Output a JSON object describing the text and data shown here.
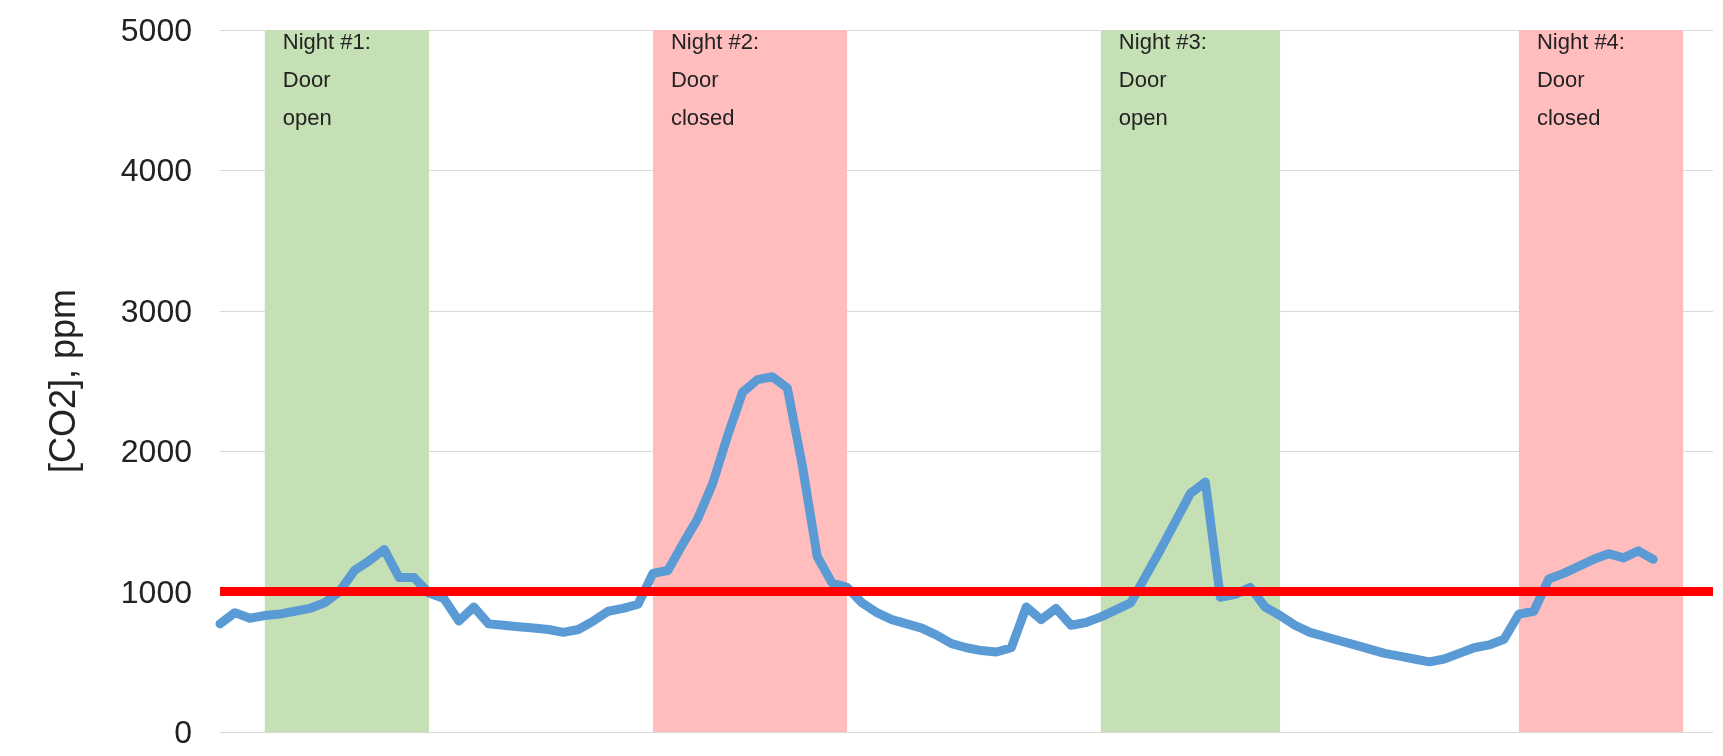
{
  "chart_data": {
    "type": "line",
    "ylabel": "[CO2], ppm",
    "categories": [
      null,
      null,
      null,
      null,
      null,
      null,
      null,
      null,
      null,
      null,
      null,
      null,
      null,
      null,
      null,
      null,
      null,
      null,
      null,
      null,
      null,
      null,
      null,
      null,
      null,
      null,
      null,
      null,
      null,
      null,
      null,
      null,
      null,
      null,
      null,
      null,
      null,
      null,
      null,
      null,
      null,
      null,
      null,
      null,
      null,
      null,
      null,
      null,
      null,
      null,
      null,
      null,
      null,
      null,
      null,
      null,
      null,
      null,
      null,
      null,
      null,
      null,
      null,
      null,
      null,
      null,
      null,
      null,
      null,
      null,
      null,
      null,
      null,
      null,
      null,
      null,
      null,
      null,
      null,
      null,
      null,
      null,
      null,
      null,
      null,
      null,
      null,
      null,
      null,
      null,
      null,
      null,
      null,
      null,
      null,
      null,
      null,
      null,
      null,
      null,
      null
    ],
    "ylim": [
      0,
      5000
    ],
    "yticks": [
      0,
      1000,
      2000,
      3000,
      4000,
      5000
    ],
    "tick_labels": "y",
    "grid": "y",
    "marker": "none",
    "line_style": "solid",
    "series": [
      {
        "color": "#5b9bd5",
        "values": [
          770,
          850,
          810,
          830,
          840,
          860,
          880,
          920,
          1000,
          1150,
          1220,
          1300,
          1100,
          1100,
          990,
          950,
          790,
          890,
          770,
          760,
          750,
          740,
          730,
          710,
          730,
          790,
          860,
          880,
          910,
          1130,
          1150,
          1340,
          1520,
          1770,
          2110,
          2420,
          2510,
          2530,
          2450,
          1900,
          1250,
          1060,
          1030,
          920,
          850,
          800,
          770,
          740,
          690,
          630,
          600,
          580,
          570,
          600,
          890,
          800,
          880,
          760,
          780,
          820,
          870,
          920,
          1110,
          1300,
          1500,
          1700,
          1780,
          960,
          980,
          1030,
          890,
          830,
          760,
          710,
          680,
          650,
          620,
          590,
          560,
          540,
          520,
          500,
          520,
          560,
          600,
          620,
          660,
          840,
          860,
          1090,
          1130,
          1180,
          1230,
          1270,
          1240,
          1290,
          1230,
          null,
          null,
          null,
          null
        ]
      }
    ],
    "ref_lines": [
      {
        "axis": "y",
        "value": 1000,
        "color": "#ff0000"
      }
    ],
    "annotations": [
      "Night #1: Door open",
      "Night #2: Door closed",
      "Night #3: Door open",
      "Night #4: Door closed"
    ]
  }
}
